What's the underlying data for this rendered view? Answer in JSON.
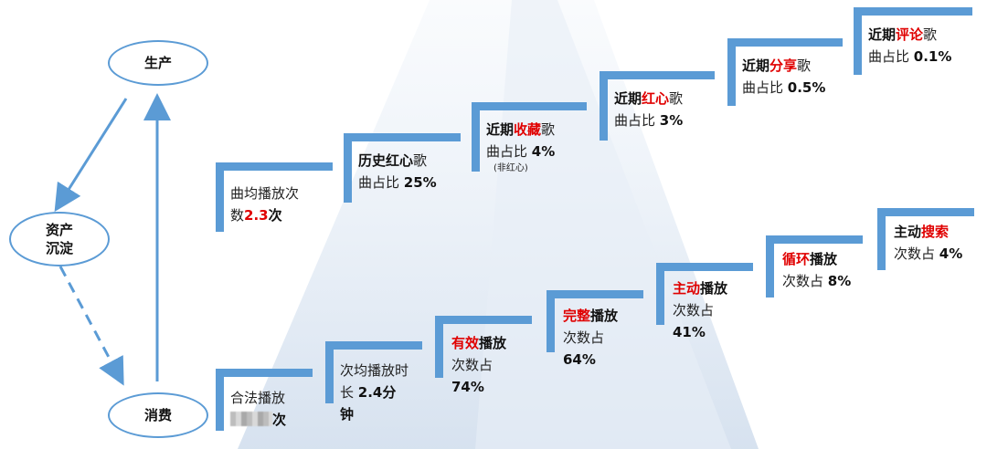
{
  "cycle": {
    "produce": "生产",
    "assets_line1": "资产",
    "assets_line2": "沉淀",
    "consume": "消费"
  },
  "top_steps": [
    {
      "line1": "曲均播放次",
      "line2_value": "2.3",
      "line2_prefix": "数",
      "line2_suffix": "次"
    },
    {
      "bold": "历史红心",
      "normal": "歌",
      "line2": "曲占比 ",
      "value": "25%"
    },
    {
      "bold": "近期",
      "red": "收藏",
      "normal": "歌",
      "line2": "曲占比 ",
      "value": "4%",
      "note": "(非红心)"
    },
    {
      "bold": "近期",
      "red": "红心",
      "normal": "歌",
      "line2": "曲占比 ",
      "value": "3%"
    },
    {
      "bold": "近期",
      "red": "分享",
      "normal": "歌",
      "line2": "曲占比 ",
      "value": "0.5%"
    },
    {
      "bold": "近期",
      "red": "评论",
      "normal": "歌",
      "line2": "曲占比 ",
      "value": "0.1%"
    }
  ],
  "bottom_steps": [
    {
      "line1": "合法播放",
      "suffix": "次"
    },
    {
      "line1": "次均播放时",
      "line2_prefix": "长 ",
      "value": "2.4分",
      "line3": "钟"
    },
    {
      "red": "有效",
      "bold": "播放",
      "line2": "次数占",
      "value": "74%"
    },
    {
      "red": "完整",
      "bold": "播放",
      "line2": "次数占",
      "value": "64%"
    },
    {
      "red": "主动",
      "bold": "播放",
      "line2": "次数占",
      "value": "41%"
    },
    {
      "red": "循环",
      "bold": "播放",
      "line2": "次数占 ",
      "value": "8%"
    },
    {
      "bold": "主动",
      "red": "搜索",
      "line2": "次数占 ",
      "value": "4%"
    }
  ],
  "colors": {
    "accent": "#5b9bd5",
    "highlight": "#e00000"
  }
}
